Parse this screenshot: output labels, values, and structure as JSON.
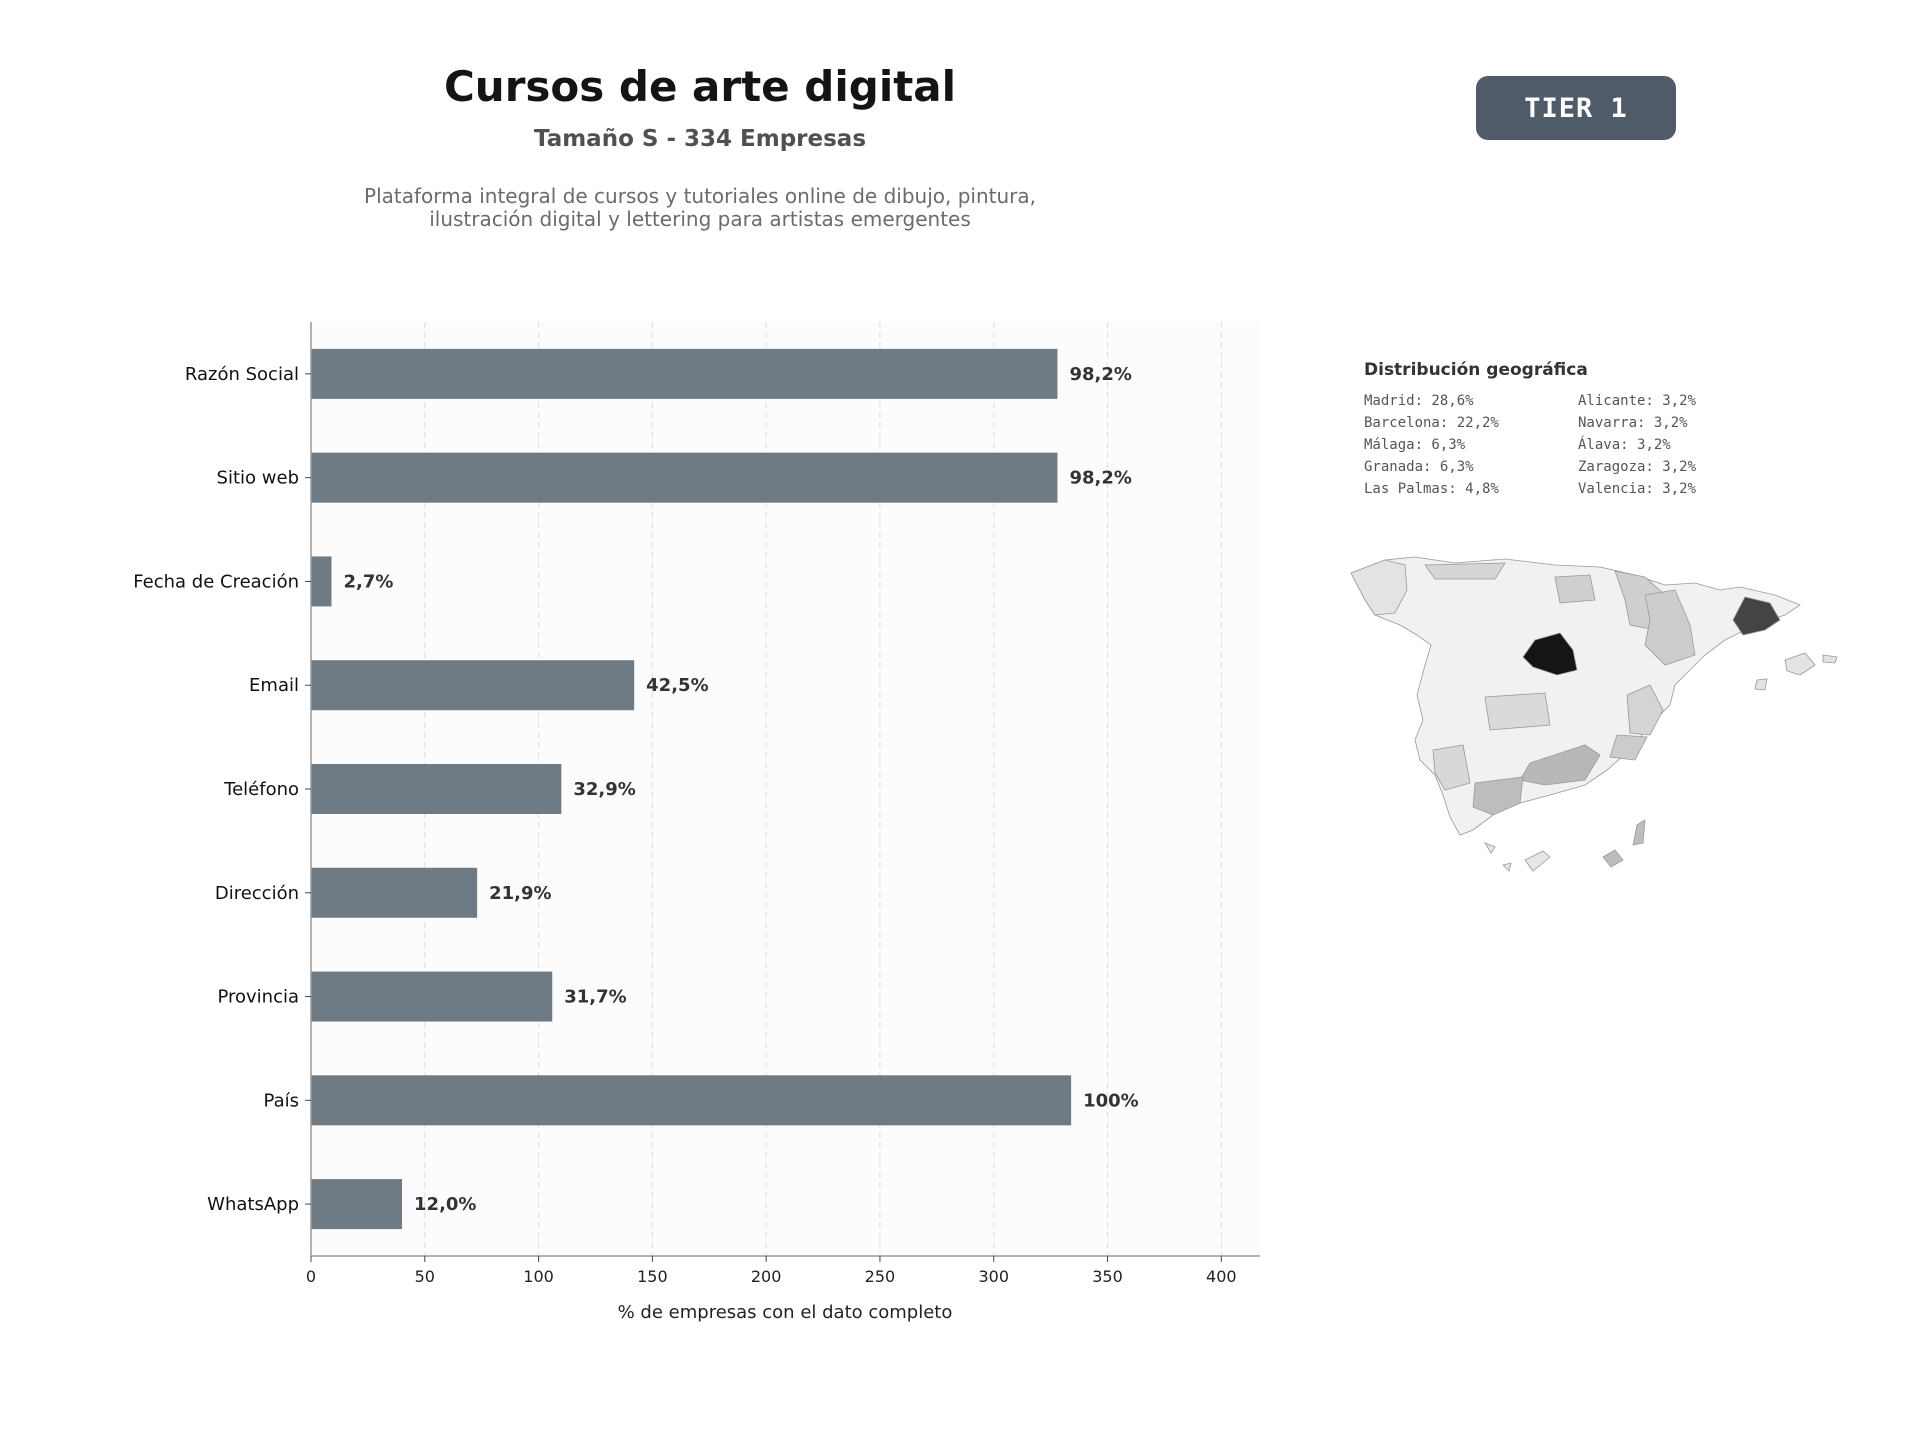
{
  "header": {
    "title": "Cursos de arte digital",
    "subtitle": "Tamaño S - 334 Empresas",
    "description": "Plataforma integral de cursos y tutoriales online de dibujo, pintura,\nilustración digital y lettering para artistas emergentes"
  },
  "badge": {
    "label": "TIER 1"
  },
  "colors": {
    "bar": "#6e7a84",
    "badge": "#4f5b68",
    "plot_bg": "#fcfcfc"
  },
  "chart_data": {
    "type": "bar",
    "orientation": "horizontal",
    "categories": [
      "Razón Social",
      "Sitio web",
      "Fecha de Creación",
      "Email",
      "Teléfono",
      "Dirección",
      "Provincia",
      "País",
      "WhatsApp"
    ],
    "values": [
      328,
      328,
      9,
      142,
      110,
      73,
      106,
      334,
      40
    ],
    "data_labels": [
      "98,2%",
      "98,2%",
      "2,7%",
      "42,5%",
      "32,9%",
      "21,9%",
      "31,7%",
      "100%",
      "12,0%"
    ],
    "xlabel": "% de empresas con el dato completo",
    "ylabel": "",
    "xlim": [
      0,
      417
    ],
    "xticks": [
      0,
      50,
      100,
      150,
      200,
      250,
      300,
      350,
      400
    ],
    "grid": "vertical dashed"
  },
  "geo": {
    "title": "Distribución geográfica",
    "left": [
      "Madrid: 28,6%",
      "Barcelona: 22,2%",
      "Málaga: 6,3%",
      "Granada: 6,3%",
      "Las Palmas: 4,8%"
    ],
    "right": [
      "Alicante: 3,2%",
      "Navarra: 3,2%",
      "Álava: 3,2%",
      "Zaragoza: 3,2%",
      "Valencia: 3,2%"
    ]
  }
}
